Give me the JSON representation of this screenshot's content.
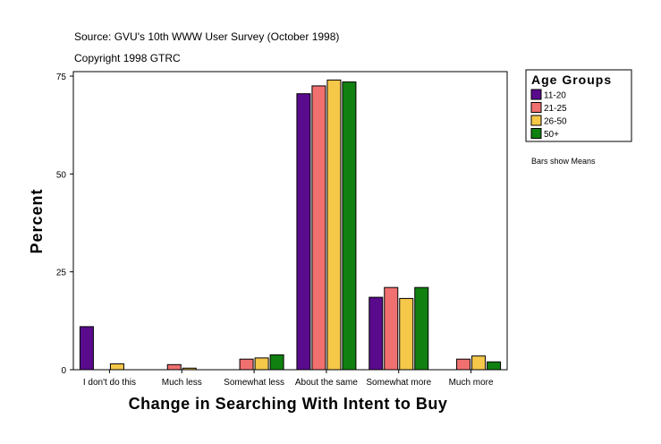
{
  "source_line": "Source: GVU's 10th WWW User Survey (October 1998)",
  "copyright_line": "Copyright 1998 GTRC",
  "note": "Bars show Means",
  "chart_data": {
    "type": "bar",
    "title": "",
    "xlabel": "Change in Searching With Intent to Buy",
    "ylabel": "Percent",
    "ylim": [
      0,
      75
    ],
    "yticks": [
      0,
      25,
      50,
      75
    ],
    "grid": false,
    "legend_title": "Age Groups",
    "legend_position": "right",
    "categories": [
      "I don't do this",
      "Much less",
      "Somewhat less",
      "About the same",
      "Somewhat more",
      "Much more"
    ],
    "series": [
      {
        "name": "11-20",
        "color": "#5a0a8c",
        "values": [
          11,
          0,
          0,
          70.5,
          18.5,
          0
        ]
      },
      {
        "name": "21-25",
        "color": "#f07070",
        "values": [
          0,
          1.3,
          2.7,
          72.5,
          21,
          2.7
        ]
      },
      {
        "name": "26-50",
        "color": "#f5c84a",
        "values": [
          1.5,
          0.4,
          3,
          74,
          18.2,
          3.5
        ]
      },
      {
        "name": "50+",
        "color": "#108010",
        "values": [
          0,
          0,
          3.8,
          73.5,
          21,
          2
        ]
      }
    ]
  }
}
